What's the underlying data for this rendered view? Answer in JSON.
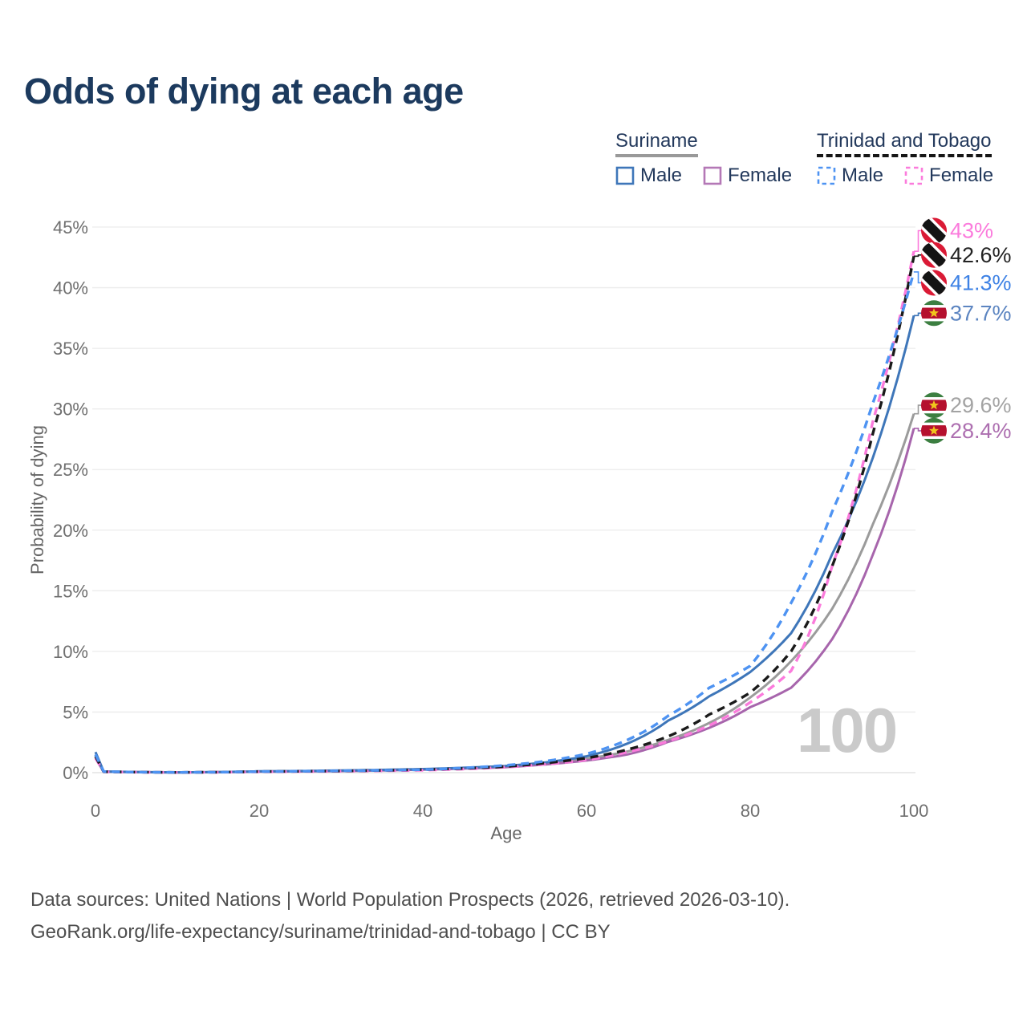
{
  "title": "Odds of dying at each age",
  "watermark": "100",
  "legend": {
    "groups": [
      {
        "label": "Suriname",
        "underline_style": "solid",
        "underline_color": "#999999",
        "items": [
          {
            "label": "Male",
            "swatch": "solid",
            "color": "#3E76B9"
          },
          {
            "label": "Female",
            "swatch": "solid",
            "color": "#B478B6"
          }
        ]
      },
      {
        "label": "Trinidad and Tobago",
        "underline_style": "dashed",
        "underline_color": "#161616",
        "items": [
          {
            "label": "Male",
            "swatch": "dashed",
            "color": "#4E93F2"
          },
          {
            "label": "Female",
            "swatch": "dashed",
            "color": "#FB7BDC"
          }
        ]
      }
    ]
  },
  "chart_data": {
    "type": "line",
    "title": "Odds of dying at each age",
    "xlabel": "Age",
    "ylabel": "Probability of dying",
    "xlim": [
      0,
      100
    ],
    "ylim_pct": [
      0,
      45
    ],
    "grid": true,
    "legend_position": "top-right",
    "x_ticks": [
      "0",
      "20",
      "40",
      "60",
      "80",
      "100"
    ],
    "y_ticks": [
      "0%",
      "5%",
      "10%",
      "15%",
      "20%",
      "25%",
      "30%",
      "35%",
      "40%",
      "45%"
    ],
    "control_ages": [
      0,
      1,
      10,
      20,
      30,
      40,
      50,
      55,
      60,
      65,
      70,
      75,
      80,
      85,
      90,
      95,
      100
    ],
    "series": [
      {
        "id": "suriname-both",
        "name": "Suriname (both sexes)",
        "country": "Suriname",
        "flag": "sr",
        "style": "solid",
        "color": "#9B9B9B",
        "end_value": 29.6,
        "end_label": "29.6%",
        "label_pos_pct": 30.3,
        "label_color": "#A3A3A3",
        "values_pct": [
          1.45,
          0.09,
          0.022,
          0.1,
          0.16,
          0.28,
          0.52,
          0.78,
          1.15,
          1.75,
          2.7,
          4.1,
          6.2,
          9.2,
          13.5,
          20.5,
          29.6
        ]
      },
      {
        "id": "suriname-female",
        "name": "Suriname Female",
        "country": "Suriname",
        "flag": "sr",
        "style": "solid",
        "color": "#A765AC",
        "end_value": 28.4,
        "end_label": "28.4%",
        "label_pos_pct": 28.2,
        "label_color": "#AD6FB0",
        "values_pct": [
          1.2,
          0.08,
          0.02,
          0.08,
          0.13,
          0.25,
          0.45,
          0.68,
          1.0,
          1.5,
          2.55,
          3.7,
          5.4,
          7.0,
          11.0,
          18.0,
          28.4
        ]
      },
      {
        "id": "suriname-male",
        "name": "Suriname Male",
        "country": "Suriname",
        "flag": "sr",
        "style": "solid",
        "color": "#3E76B9",
        "end_value": 37.7,
        "end_label": "37.7%",
        "label_pos_pct": 37.9,
        "label_color": "#5C85C1",
        "values_pct": [
          1.7,
          0.1,
          0.025,
          0.11,
          0.18,
          0.3,
          0.55,
          0.85,
          1.35,
          2.4,
          4.3,
          6.3,
          8.3,
          11.5,
          18.0,
          26.0,
          37.7
        ]
      },
      {
        "id": "tt-female",
        "name": "Trinidad and Tobago Female",
        "country": "Trinidad and Tobago",
        "flag": "tt",
        "style": "dashed",
        "color": "#FB7BDC",
        "end_value": 43.0,
        "end_label": "43%",
        "label_pos_pct": 44.7,
        "label_color": "#FB7BDC",
        "values_pct": [
          1.2,
          0.07,
          0.018,
          0.07,
          0.12,
          0.2,
          0.45,
          0.7,
          1.05,
          1.7,
          2.6,
          3.9,
          5.8,
          8.4,
          17.0,
          29.0,
          43.0
        ]
      },
      {
        "id": "tt-both",
        "name": "Trinidad and Tobago (both sexes)",
        "country": "Trinidad and Tobago",
        "flag": "tt",
        "style": "dashed",
        "color": "#1A1A1A",
        "end_value": 42.6,
        "end_label": "42.6%",
        "label_pos_pct": 42.7,
        "label_color": "#222222",
        "values_pct": [
          1.35,
          0.08,
          0.02,
          0.09,
          0.14,
          0.25,
          0.5,
          0.8,
          1.2,
          1.9,
          3.0,
          4.8,
          6.6,
          10.0,
          17.0,
          28.0,
          42.6
        ]
      },
      {
        "id": "tt-male",
        "name": "Trinidad and Tobago Male",
        "country": "Trinidad and Tobago",
        "flag": "tt",
        "style": "dashed",
        "color": "#4E93F2",
        "end_value": 41.3,
        "end_label": "41.3%",
        "label_pos_pct": 40.4,
        "label_color": "#3E82E5",
        "values_pct": [
          1.5,
          0.09,
          0.02,
          0.09,
          0.15,
          0.25,
          0.6,
          0.95,
          1.55,
          2.7,
          4.7,
          7.0,
          8.8,
          14.0,
          21.5,
          30.5,
          41.3
        ]
      }
    ],
    "flag_colors": {
      "tt_red": "#DA1A35",
      "tt_black": "#141414",
      "tt_white": "#FFFFFF",
      "sr_green": "#3C7F41",
      "sr_white": "#FFFFFF",
      "sr_red": "#B5112E",
      "sr_star": "#F0C61C"
    }
  },
  "footer": {
    "line1": "Data sources: United Nations | World Population Prospects (2026, retrieved 2026-03-10).",
    "line2": "GeoRank.org/life-expectancy/suriname/trinidad-and-tobago | CC BY"
  }
}
